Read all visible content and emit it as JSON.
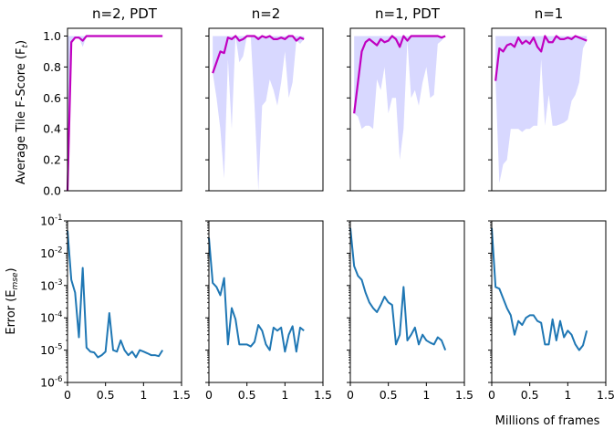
{
  "figure": {
    "ylabel_top": "Average Tile F-Score (F",
    "ylabel_top_sub": "t",
    "ylabel_bottom": "Error (E",
    "ylabel_bottom_sub": "mse",
    "xlabel": "Millions of frames"
  },
  "colors": {
    "f_line": "#c000c0",
    "f_band": "#d8d8ff",
    "err_line": "#1f77b4",
    "axis": "#000000"
  },
  "chart_data": [
    {
      "type": "line",
      "panel": "n=2, PDT (F-score)",
      "title": "n=2, PDT",
      "xlim": [
        0,
        1.5
      ],
      "ylim": [
        0,
        1.05
      ],
      "yticks": [
        "0.0",
        "0.2",
        "0.4",
        "0.6",
        "0.8",
        "1.0"
      ],
      "x": [
        0,
        0.05,
        0.1,
        0.15,
        0.2,
        0.25,
        0.3,
        1.25
      ],
      "series": [
        {
          "values": [
            0.0,
            0.96,
            0.99,
            0.99,
            0.97,
            1.0,
            1.0,
            1.0
          ]
        }
      ],
      "band_low": [
        0.0,
        0.96,
        0.99,
        0.99,
        0.93,
        1.0,
        1.0,
        1.0
      ]
    },
    {
      "type": "line",
      "panel": "n=2 (F-score)",
      "title": "n=2",
      "xlim": [
        0,
        1.5
      ],
      "ylim": [
        0,
        1.05
      ],
      "x": [
        0.05,
        0.1,
        0.15,
        0.2,
        0.25,
        0.3,
        0.35,
        0.4,
        0.45,
        0.5,
        0.55,
        0.6,
        0.65,
        0.7,
        0.75,
        0.8,
        0.85,
        0.9,
        0.95,
        1.0,
        1.05,
        1.1,
        1.15,
        1.2,
        1.25
      ],
      "series": [
        {
          "values": [
            0.76,
            0.83,
            0.9,
            0.89,
            0.99,
            0.98,
            1.0,
            0.97,
            0.98,
            1.0,
            1.0,
            1.0,
            0.98,
            1.0,
            0.99,
            1.0,
            0.98,
            0.98,
            0.99,
            0.98,
            1.0,
            1.0,
            0.97,
            0.99,
            0.98
          ]
        }
      ],
      "band_low": [
        0.76,
        0.6,
        0.4,
        0.08,
        0.85,
        0.4,
        1.0,
        0.83,
        0.87,
        1.0,
        1.0,
        0.55,
        0.0,
        0.55,
        0.58,
        0.72,
        0.65,
        0.55,
        0.7,
        0.9,
        0.6,
        0.7,
        0.97,
        0.95,
        0.98
      ]
    },
    {
      "type": "line",
      "panel": "n=1, PDT (F-score)",
      "title": "n=1, PDT",
      "xlim": [
        0,
        1.5
      ],
      "ylim": [
        0,
        1.05
      ],
      "x": [
        0.05,
        0.1,
        0.15,
        0.2,
        0.25,
        0.3,
        0.35,
        0.4,
        0.45,
        0.5,
        0.55,
        0.6,
        0.65,
        0.7,
        0.75,
        0.8,
        0.85,
        0.9,
        0.95,
        1.0,
        1.05,
        1.1,
        1.15,
        1.2,
        1.25
      ],
      "series": [
        {
          "values": [
            0.5,
            0.7,
            0.9,
            0.96,
            0.98,
            0.96,
            0.94,
            0.98,
            0.96,
            0.97,
            1.0,
            0.98,
            0.93,
            1.0,
            0.97,
            1.0,
            1.0,
            1.0,
            1.0,
            1.0,
            1.0,
            1.0,
            1.0,
            0.99,
            1.0
          ]
        }
      ],
      "band_low": [
        0.5,
        0.48,
        0.4,
        0.42,
        0.42,
        0.4,
        0.72,
        0.65,
        0.8,
        0.5,
        0.6,
        0.6,
        0.2,
        0.4,
        0.97,
        0.6,
        0.65,
        0.55,
        0.7,
        0.8,
        0.6,
        0.62,
        0.95,
        0.97,
        1.0
      ]
    },
    {
      "type": "line",
      "panel": "n=1 (F-score)",
      "title": "n=1",
      "xlim": [
        0,
        1.5
      ],
      "ylim": [
        0,
        1.05
      ],
      "x": [
        0.05,
        0.1,
        0.15,
        0.2,
        0.25,
        0.3,
        0.35,
        0.4,
        0.45,
        0.5,
        0.55,
        0.6,
        0.65,
        0.7,
        0.75,
        0.8,
        0.85,
        0.9,
        0.95,
        1.0,
        1.05,
        1.1,
        1.15,
        1.2,
        1.25
      ],
      "series": [
        {
          "values": [
            0.71,
            0.92,
            0.9,
            0.94,
            0.95,
            0.93,
            0.99,
            0.95,
            0.97,
            0.95,
            0.99,
            0.93,
            0.9,
            1.0,
            0.96,
            0.96,
            1.0,
            0.98,
            0.98,
            0.99,
            0.98,
            1.0,
            0.99,
            0.98,
            0.97
          ]
        }
      ],
      "band_low": [
        0.71,
        0.05,
        0.17,
        0.2,
        0.4,
        0.4,
        0.4,
        0.38,
        0.4,
        0.4,
        0.42,
        0.42,
        0.85,
        0.42,
        0.62,
        0.42,
        0.42,
        0.43,
        0.44,
        0.46,
        0.58,
        0.62,
        0.7,
        0.92,
        0.97
      ]
    },
    {
      "type": "line",
      "panel": "n=2, PDT (error)",
      "yscale": "log",
      "xlim": [
        0,
        1.5
      ],
      "ylim": [
        1e-06,
        0.1
      ],
      "yticks": [
        "10",
        "10",
        "10",
        "10",
        "10",
        "10"
      ],
      "yticks_exp": [
        "-6",
        "-5",
        "-4",
        "-3",
        "-2",
        "-1"
      ],
      "xticks": [
        "0",
        "0.5",
        "1",
        "1.5"
      ],
      "x": [
        0,
        0.05,
        0.1,
        0.15,
        0.2,
        0.25,
        0.3,
        0.35,
        0.4,
        0.45,
        0.5,
        0.55,
        0.6,
        0.65,
        0.7,
        0.75,
        0.8,
        0.85,
        0.9,
        0.95,
        1.0,
        1.05,
        1.1,
        1.15,
        1.2,
        1.25
      ],
      "series": [
        {
          "values": [
            0.05,
            0.0015,
            0.0006,
            2.5e-05,
            0.0035,
            1.2e-05,
            9e-06,
            8.5e-06,
            6e-06,
            7e-06,
            9e-06,
            0.00014,
            1e-05,
            9e-06,
            2e-05,
            1e-05,
            7e-06,
            9e-06,
            6e-06,
            1e-05,
            9e-06,
            8e-06,
            7e-06,
            7e-06,
            6.5e-06,
            1e-05
          ]
        }
      ]
    },
    {
      "type": "line",
      "panel": "n=2 (error)",
      "yscale": "log",
      "xlim": [
        0,
        1.5
      ],
      "ylim": [
        1e-06,
        0.1
      ],
      "xticks": [
        "0",
        "0.5",
        "1",
        "1.5"
      ],
      "x": [
        0,
        0.05,
        0.1,
        0.15,
        0.2,
        0.25,
        0.3,
        0.35,
        0.4,
        0.45,
        0.5,
        0.55,
        0.6,
        0.65,
        0.7,
        0.75,
        0.8,
        0.85,
        0.9,
        0.95,
        1.0,
        1.05,
        1.1,
        1.15,
        1.2,
        1.25
      ],
      "series": [
        {
          "values": [
            0.03,
            0.0012,
            0.0009,
            0.0005,
            0.0017,
            1.5e-05,
            0.0002,
            9e-05,
            1.5e-05,
            1.5e-05,
            1.5e-05,
            1.3e-05,
            1.8e-05,
            6e-05,
            4e-05,
            1.5e-05,
            1e-05,
            5e-05,
            4e-05,
            5e-05,
            9e-06,
            3e-05,
            5.5e-05,
            9e-06,
            5e-05,
            4e-05
          ]
        }
      ]
    },
    {
      "type": "line",
      "panel": "n=1, PDT (error)",
      "yscale": "log",
      "xlim": [
        0,
        1.5
      ],
      "ylim": [
        1e-06,
        0.1
      ],
      "xticks": [
        "0",
        "0.5",
        "1",
        "1.5"
      ],
      "x": [
        0,
        0.05,
        0.1,
        0.15,
        0.2,
        0.25,
        0.3,
        0.35,
        0.4,
        0.45,
        0.5,
        0.55,
        0.6,
        0.65,
        0.7,
        0.75,
        0.8,
        0.85,
        0.9,
        0.95,
        1.0,
        1.05,
        1.1,
        1.15,
        1.2,
        1.25
      ],
      "series": [
        {
          "values": [
            0.06,
            0.004,
            0.002,
            0.0015,
            0.0006,
            0.0003,
            0.0002,
            0.00015,
            0.00025,
            0.00045,
            0.0003,
            0.00025,
            1.5e-05,
            3e-05,
            0.0009,
            2e-05,
            3e-05,
            5e-05,
            1.5e-05,
            3e-05,
            2e-05,
            1.7e-05,
            1.5e-05,
            2.5e-05,
            2e-05,
            1e-05
          ]
        }
      ]
    },
    {
      "type": "line",
      "panel": "n=1 (error)",
      "yscale": "log",
      "xlim": [
        0,
        1.5
      ],
      "ylim": [
        1e-06,
        0.1
      ],
      "xticks": [
        "0",
        "0.5",
        "1",
        "1.5"
      ],
      "x": [
        0,
        0.05,
        0.1,
        0.15,
        0.2,
        0.25,
        0.3,
        0.35,
        0.4,
        0.45,
        0.5,
        0.55,
        0.6,
        0.65,
        0.7,
        0.75,
        0.8,
        0.85,
        0.9,
        0.95,
        1.0,
        1.05,
        1.1,
        1.15,
        1.2,
        1.25
      ],
      "series": [
        {
          "values": [
            0.06,
            0.0009,
            0.0008,
            0.0004,
            0.0002,
            0.00012,
            3e-05,
            8e-05,
            6e-05,
            0.0001,
            0.00012,
            0.00012,
            8e-05,
            7e-05,
            1.5e-05,
            1.5e-05,
            9e-05,
            2e-05,
            8e-05,
            2.5e-05,
            4e-05,
            3e-05,
            1.5e-05,
            1e-05,
            1.4e-05,
            4e-05
          ]
        }
      ]
    }
  ]
}
